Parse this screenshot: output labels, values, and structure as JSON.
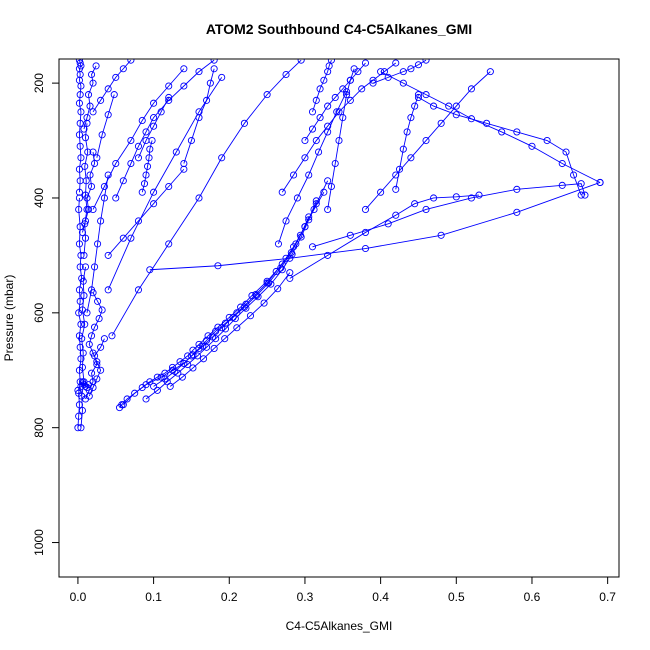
{
  "chart_data": {
    "type": "scatter",
    "title": "ATOM2 Southbound C4-C5Alkanes_GMI",
    "xlabel": "C4-C5Alkanes_GMI",
    "ylabel": "Pressure (mbar)",
    "xlim": [
      -0.025,
      0.715
    ],
    "ylim": [
      1060,
      158
    ],
    "y_reversed": true,
    "grid": false,
    "legend": "none",
    "marker": "open-circle",
    "x_ticks": [
      0.0,
      0.1,
      0.2,
      0.3,
      0.4,
      0.5,
      0.6,
      0.7
    ],
    "x_tick_labels": [
      "0.0",
      "0.1",
      "0.2",
      "0.3",
      "0.4",
      "0.5",
      "0.6",
      "0.7"
    ],
    "y_ticks": [
      200,
      400,
      600,
      800,
      1000
    ],
    "y_tick_labels": [
      "200",
      "400",
      "600",
      "800",
      "1000"
    ],
    "series_color": "#0000ff",
    "series": [
      {
        "x": [
          0.0,
          0.001,
          0.002,
          0.001,
          0.003,
          0.002,
          0.004,
          0.003,
          0.002,
          0.004,
          0.001,
          0.003,
          0.002,
          0.005,
          0.003,
          0.004,
          0.002,
          0.003,
          0.001,
          0.002
        ],
        "y": [
          800,
          780,
          760,
          740,
          720,
          700,
          680,
          660,
          640,
          620,
          600,
          580,
          560,
          540,
          520,
          500,
          480,
          450,
          420,
          400
        ]
      },
      {
        "x": [
          0.002,
          0.003,
          0.002,
          0.004,
          0.003,
          0.002,
          0.003,
          0.004,
          0.002,
          0.003,
          0.004,
          0.002,
          0.003,
          0.002,
          0.004,
          0.003,
          0.002
        ],
        "y": [
          390,
          370,
          350,
          330,
          310,
          290,
          270,
          250,
          235,
          220,
          205,
          195,
          185,
          175,
          170,
          165,
          160
        ]
      },
      {
        "x": [
          0.004,
          0.006,
          0.005,
          0.008,
          0.006,
          0.007,
          0.005,
          0.009,
          0.006,
          0.008,
          0.007,
          0.01
        ],
        "y": [
          800,
          770,
          745,
          720,
          695,
          670,
          645,
          620,
          595,
          570,
          545,
          520
        ]
      },
      {
        "x": [
          0.008,
          0.01,
          0.009,
          0.012,
          0.01,
          0.011,
          0.009,
          0.013,
          0.01,
          0.012
        ],
        "y": [
          500,
          470,
          445,
          420,
          395,
          370,
          345,
          320,
          295,
          270
        ]
      },
      {
        "x": [
          0.055,
          0.058,
          0.065,
          0.085,
          0.095,
          0.105,
          0.115,
          0.125,
          0.135,
          0.145,
          0.152,
          0.16,
          0.172,
          0.185,
          0.2,
          0.215,
          0.23,
          0.25,
          0.27,
          0.285,
          0.3,
          0.315,
          0.33
        ],
        "y": [
          765,
          760,
          750,
          730,
          720,
          712,
          705,
          695,
          685,
          675,
          665,
          655,
          640,
          625,
          608,
          590,
          570,
          545,
          515,
          485,
          450,
          410,
          370
        ]
      },
      {
        "x": [
          0.06,
          0.075,
          0.09,
          0.11,
          0.125,
          0.14,
          0.15,
          0.16,
          0.17,
          0.182,
          0.195,
          0.21,
          0.222,
          0.235,
          0.25,
          0.262,
          0.275,
          0.288,
          0.3,
          0.312,
          0.325
        ],
        "y": [
          760,
          740,
          725,
          712,
          700,
          688,
          675,
          662,
          648,
          632,
          618,
          600,
          585,
          568,
          548,
          528,
          505,
          480,
          450,
          420,
          390
        ]
      },
      {
        "x": [
          0.09,
          0.105,
          0.118,
          0.132,
          0.145,
          0.158,
          0.17,
          0.182,
          0.195,
          0.208,
          0.222,
          0.238,
          0.255,
          0.27,
          0.283,
          0.295,
          0.305,
          0.315
        ],
        "y": [
          750,
          735,
          720,
          705,
          690,
          675,
          660,
          645,
          628,
          610,
          592,
          572,
          550,
          525,
          498,
          468,
          438,
          405
        ]
      },
      {
        "x": [
          0.1,
          0.115,
          0.128,
          0.14,
          0.152,
          0.165,
          0.178,
          0.19,
          0.205,
          0.22,
          0.236,
          0.252,
          0.268,
          0.282,
          0.294,
          0.305
        ],
        "y": [
          728,
          715,
          702,
          688,
          673,
          658,
          642,
          626,
          608,
          590,
          570,
          548,
          522,
          495,
          465,
          433
        ]
      },
      {
        "x": [
          0.122,
          0.138,
          0.152,
          0.166,
          0.18,
          0.194,
          0.21,
          0.228,
          0.246,
          0.264,
          0.28
        ],
        "y": [
          728,
          712,
          696,
          680,
          662,
          645,
          626,
          605,
          583,
          558,
          530
        ]
      },
      {
        "x": [
          0.095,
          0.185,
          0.28,
          0.38,
          0.48,
          0.58,
          0.69
        ],
        "y": [
          525,
          518,
          505,
          488,
          465,
          425,
          373
        ]
      },
      {
        "x": [
          0.28,
          0.33,
          0.38,
          0.42,
          0.445,
          0.47,
          0.5,
          0.53
        ],
        "y": [
          540,
          500,
          460,
          430,
          410,
          400,
          398,
          395
        ]
      },
      {
        "x": [
          0.31,
          0.36,
          0.41,
          0.46,
          0.52,
          0.58,
          0.64,
          0.665,
          0.67
        ],
        "y": [
          485,
          465,
          445,
          420,
          400,
          385,
          378,
          375,
          395
        ]
      },
      {
        "x": [
          0.665,
          0.655,
          0.645,
          0.62,
          0.58,
          0.54,
          0.5,
          0.47,
          0.45
        ],
        "y": [
          395,
          360,
          320,
          300,
          285,
          270,
          255,
          240,
          225
        ]
      },
      {
        "x": [
          0.69,
          0.64,
          0.6,
          0.56,
          0.52,
          0.49,
          0.46,
          0.43,
          0.4
        ],
        "y": [
          373,
          340,
          310,
          285,
          262,
          240,
          220,
          200,
          180
        ]
      },
      {
        "x": [
          0.27,
          0.285,
          0.3,
          0.315,
          0.33,
          0.345,
          0.36,
          0.375,
          0.39,
          0.405,
          0.42
        ],
        "y": [
          390,
          360,
          330,
          300,
          275,
          250,
          230,
          210,
          195,
          180,
          165
        ]
      },
      {
        "x": [
          0.265,
          0.275,
          0.29,
          0.305,
          0.318,
          0.33,
          0.342,
          0.355
        ],
        "y": [
          480,
          440,
          400,
          360,
          320,
          285,
          250,
          215
        ]
      },
      {
        "x": [
          0.3,
          0.31,
          0.32,
          0.33,
          0.34,
          0.35,
          0.36,
          0.37,
          0.38
        ],
        "y": [
          300,
          280,
          260,
          240,
          225,
          210,
          195,
          180,
          165
        ]
      },
      {
        "x": [
          0.38,
          0.4,
          0.42,
          0.44,
          0.46,
          0.48,
          0.5,
          0.52,
          0.545
        ],
        "y": [
          420,
          390,
          360,
          330,
          300,
          270,
          240,
          210,
          180
        ]
      },
      {
        "x": [
          0.33,
          0.335,
          0.34,
          0.345,
          0.35,
          0.355,
          0.36,
          0.365
        ],
        "y": [
          420,
          380,
          340,
          300,
          260,
          220,
          195,
          175
        ]
      },
      {
        "x": [
          0.31,
          0.315,
          0.32,
          0.325,
          0.33,
          0.332,
          0.335
        ],
        "y": [
          250,
          230,
          210,
          195,
          180,
          170,
          160
        ]
      },
      {
        "x": [
          0.39,
          0.41,
          0.43,
          0.44,
          0.45,
          0.46
        ],
        "y": [
          200,
          190,
          180,
          175,
          168,
          160
        ]
      },
      {
        "x": [
          0.42,
          0.425,
          0.43,
          0.435,
          0.44,
          0.445,
          0.45
        ],
        "y": [
          385,
          350,
          315,
          285,
          260,
          240,
          220
        ]
      },
      {
        "x": [
          0.045,
          0.08,
          0.12,
          0.16,
          0.19,
          0.22,
          0.25,
          0.275,
          0.295
        ],
        "y": [
          640,
          560,
          480,
          400,
          330,
          270,
          220,
          185,
          160
        ]
      },
      {
        "x": [
          0.04,
          0.07,
          0.1,
          0.13,
          0.16,
          0.19
        ],
        "y": [
          560,
          470,
          390,
          320,
          250,
          190
        ]
      },
      {
        "x": [
          0.02,
          0.035,
          0.05,
          0.07,
          0.085,
          0.1,
          0.12,
          0.14
        ],
        "y": [
          420,
          380,
          340,
          300,
          265,
          235,
          205,
          175
        ]
      },
      {
        "x": [
          0.05,
          0.06,
          0.07,
          0.08,
          0.09,
          0.1,
          0.12,
          0.14,
          0.16,
          0.18
        ],
        "y": [
          400,
          370,
          340,
          310,
          285,
          260,
          230,
          205,
          180,
          160
        ]
      },
      {
        "x": [
          0.085,
          0.088,
          0.09,
          0.092,
          0.094,
          0.095,
          0.098
        ],
        "y": [
          390,
          375,
          360,
          345,
          330,
          315,
          300
        ]
      },
      {
        "x": [
          0.04,
          0.06,
          0.08,
          0.1,
          0.12,
          0.14
        ],
        "y": [
          500,
          470,
          440,
          410,
          380,
          350
        ]
      },
      {
        "x": [
          0.14,
          0.15,
          0.16,
          0.17,
          0.175,
          0.18
        ],
        "y": [
          340,
          300,
          260,
          230,
          200,
          175
        ]
      },
      {
        "x": [
          0.08,
          0.09,
          0.1,
          0.11,
          0.12
        ],
        "y": [
          330,
          300,
          275,
          250,
          225
        ]
      },
      {
        "x": [
          0.02,
          0.03,
          0.04,
          0.05,
          0.06,
          0.07
        ],
        "y": [
          250,
          230,
          210,
          190,
          175,
          160
        ]
      },
      {
        "x": [
          0.025,
          0.032,
          0.04,
          0.048
        ],
        "y": [
          330,
          290,
          255,
          220
        ]
      },
      {
        "x": [
          0.012,
          0.018,
          0.022,
          0.026,
          0.03,
          0.035,
          0.04
        ],
        "y": [
          600,
          560,
          520,
          480,
          440,
          400,
          360
        ]
      },
      {
        "x": [
          0.015,
          0.02,
          0.025,
          0.03,
          0.025,
          0.02,
          0.015,
          0.018,
          0.022,
          0.028,
          0.032,
          0.026,
          0.02
        ],
        "y": [
          745,
          730,
          715,
          700,
          685,
          670,
          655,
          640,
          625,
          610,
          595,
          580,
          565
        ]
      },
      {
        "x": [
          0.01,
          0.015,
          0.02,
          0.018,
          0.025,
          0.022,
          0.03,
          0.035
        ],
        "y": [
          750,
          735,
          720,
          705,
          690,
          675,
          660,
          645
        ]
      },
      {
        "x": [
          0.008,
          0.012,
          0.016,
          0.014,
          0.02,
          0.018,
          0.024
        ],
        "y": [
          280,
          260,
          240,
          220,
          200,
          185,
          170
        ]
      },
      {
        "x": [
          0.006,
          0.01,
          0.014,
          0.012,
          0.018,
          0.016,
          0.022,
          0.02
        ],
        "y": [
          460,
          440,
          420,
          400,
          380,
          360,
          340,
          320
        ]
      },
      {
        "x": [
          0.0,
          0.004,
          0.008,
          0.006,
          0.01,
          0.014,
          0.012
        ],
        "y": [
          735,
          728,
          725,
          720,
          728,
          725,
          730
        ]
      }
    ]
  }
}
